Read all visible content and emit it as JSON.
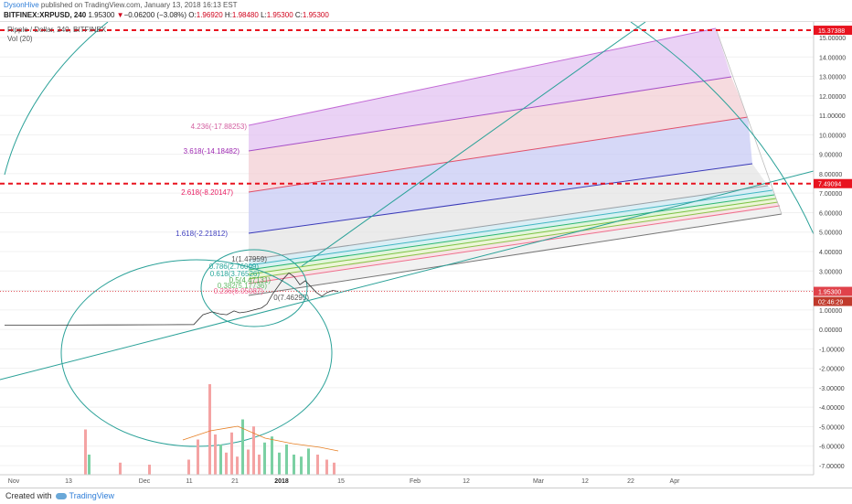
{
  "header": {
    "author": "DysonHive",
    "published_text": " published on TradingView.com, January 13, 2018 16:13 EST"
  },
  "ohlc": {
    "symbol": "BITFINEX:XRPUSD, 240",
    "last": "1.95300",
    "change": "−0.06200 (−3.08%)",
    "open_label": "O:",
    "open": "1.96920",
    "high_label": "H:",
    "high": "1.98480",
    "low_label": "L:",
    "low": "1.95300",
    "close_label": "C:",
    "close": "1.95300"
  },
  "legend": {
    "series": "Ripple / Dollar, 240, BITFINEX",
    "indicator": "Vol (20)"
  },
  "footer": {
    "created_with": "Created with",
    "brand": "TradingView"
  },
  "colors": {
    "accent": "#2f7ed8",
    "down": "#d0021b",
    "price_line": "#e0424a",
    "hline": "#e8131f",
    "trend": "#2aa198"
  },
  "chart_data": {
    "type": "line",
    "y_axis_labels": [
      "15.00000",
      "14.00000",
      "13.00000",
      "12.00000",
      "11.00000",
      "10.00000",
      "9.00000",
      "8.00000",
      "7.00000",
      "6.00000",
      "5.00000",
      "4.00000",
      "3.00000",
      "2.00000",
      "1.00000",
      "0.00000",
      "-1.00000",
      "-2.00000",
      "-3.00000",
      "-4.00000",
      "-5.00000",
      "-6.00000",
      "-7.00000"
    ],
    "y_ticks": [
      15,
      14,
      13,
      12,
      11,
      10,
      9,
      8,
      7,
      6,
      5,
      4,
      3,
      2,
      1,
      0,
      -1,
      -2,
      -3,
      -4,
      -5,
      -6,
      -7
    ],
    "x_axis_labels": [
      "Nov",
      "13",
      "Dec",
      "11",
      "21",
      "2018",
      "15",
      "Feb",
      "12",
      "Mar",
      "12",
      "22",
      "Apr"
    ],
    "ylim": [
      -7.5,
      16
    ],
    "horizontal_levels": [
      {
        "label": "15.37388",
        "value": 15.37388
      },
      {
        "label": "7.49094",
        "value": 7.49094
      }
    ],
    "current_price": {
      "label": "1.95300",
      "value": 1.953
    },
    "countdown": "02:46:29",
    "fib_channel_levels": [
      {
        "label": "4.236(-17.88253)",
        "color": "#d35fa0"
      },
      {
        "label": "3.618(-14.18482)",
        "color": "#9c27b0"
      },
      {
        "label": "2.618(-8.20147)",
        "color": "#e91e63"
      },
      {
        "label": "1.618(-2.21812)",
        "color": "#3f3fbf"
      },
      {
        "label": "1(1.47959)",
        "color": "#555555"
      },
      {
        "label": "0.786(2.76009)",
        "color": "#26a69a"
      },
      {
        "label": "0.618(3.76526)",
        "color": "#26a69a"
      },
      {
        "label": "0.5(4.47131)",
        "color": "#4caf50"
      },
      {
        "label": "0.382(5.17736)",
        "color": "#66bb6a"
      },
      {
        "label": "0.236(6.05087)",
        "color": "#f06292"
      },
      {
        "label": "0(7.46295)",
        "color": "#555555"
      }
    ]
  }
}
